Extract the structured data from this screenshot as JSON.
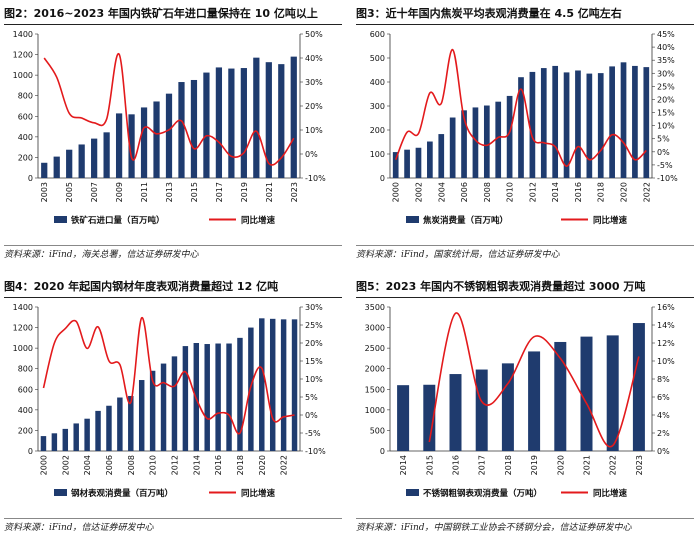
{
  "colors": {
    "bar": "#1f3b6e",
    "line": "#e31a1c",
    "axis": "#333333"
  },
  "chart_data": [
    {
      "type": "bar",
      "title": "图2：2016~2023 年国内铁矿石年进口量保持在 10 亿吨以上",
      "source": "资料来源：iFind，海关总署，信达证券研发中心",
      "categories": [
        "2003",
        "2004",
        "2005",
        "2006",
        "2007",
        "2008",
        "2009",
        "2010",
        "2011",
        "2012",
        "2013",
        "2014",
        "2015",
        "2016",
        "2017",
        "2018",
        "2019",
        "2020",
        "2021",
        "2022",
        "2023"
      ],
      "x_tick_labels": [
        "2003",
        "2005",
        "2007",
        "2009",
        "2011",
        "2013",
        "2015",
        "2017",
        "2019",
        "2021",
        "2023"
      ],
      "series": [
        {
          "name": "铁矿石进口量（百万吨）",
          "type": "bar",
          "axis": "left",
          "values": [
            148,
            208,
            275,
            326,
            383,
            444,
            628,
            619,
            686,
            744,
            820,
            933,
            953,
            1025,
            1075,
            1064,
            1069,
            1170,
            1126,
            1107,
            1180
          ]
        },
        {
          "name": "同比增速",
          "type": "line",
          "axis": "right",
          "values": [
            40.0,
            32.0,
            17.0,
            15.0,
            13.0,
            14.5,
            41.6,
            -1.5,
            10.9,
            8.4,
            10.1,
            13.8,
            2.2,
            7.6,
            4.9,
            -1.0,
            0.5,
            9.5,
            -3.9,
            -1.6,
            6.6
          ]
        }
      ],
      "y_left": {
        "min": 0,
        "max": 1400,
        "step": 200,
        "ticks": [
          "0",
          "200",
          "400",
          "600",
          "800",
          "1000",
          "1200",
          "1400"
        ]
      },
      "y_right": {
        "min": -10,
        "max": 50,
        "step": 10,
        "ticks": [
          "-10%",
          "0%",
          "10%",
          "20%",
          "30%",
          "40%",
          "50%"
        ]
      }
    },
    {
      "type": "bar",
      "title": "图3：近十年国内焦炭平均表观消费量在 4.5 亿吨左右",
      "source": "资料来源：iFind，国家统计局，信达证券研发中心",
      "categories": [
        "2000",
        "2001",
        "2002",
        "2003",
        "2004",
        "2005",
        "2006",
        "2007",
        "2008",
        "2009",
        "2010",
        "2011",
        "2012",
        "2013",
        "2014",
        "2015",
        "2016",
        "2017",
        "2018",
        "2019",
        "2020",
        "2021",
        "2022"
      ],
      "x_tick_labels": [
        "2000",
        "2002",
        "2004",
        "2006",
        "2008",
        "2010",
        "2012",
        "2014",
        "2016",
        "2018",
        "2020",
        "2022"
      ],
      "series": [
        {
          "name": "焦炭消费量（百万吨）",
          "type": "bar",
          "axis": "left",
          "values": [
            108,
            118,
            126,
            152,
            183,
            252,
            282,
            294,
            302,
            318,
            342,
            420,
            442,
            458,
            467,
            440,
            448,
            435,
            437,
            465,
            482,
            467,
            462
          ]
        },
        {
          "name": "同比增速",
          "type": "line",
          "axis": "right",
          "values": [
            -3.0,
            7.5,
            7.0,
            22.5,
            18.5,
            39.0,
            13.0,
            4.5,
            2.5,
            5.5,
            7.5,
            24.0,
            5.5,
            3.5,
            2.0,
            -5.5,
            2.0,
            -3.0,
            0.5,
            6.5,
            3.5,
            -3.0,
            0.5
          ]
        }
      ],
      "y_left": {
        "min": 0,
        "max": 600,
        "step": 100,
        "ticks": [
          "0",
          "100",
          "200",
          "300",
          "400",
          "500",
          "600"
        ]
      },
      "y_right": {
        "min": -10,
        "max": 45,
        "step": 5,
        "ticks": [
          "-10%",
          "-5%",
          "0%",
          "5%",
          "10%",
          "15%",
          "20%",
          "25%",
          "30%",
          "35%",
          "40%",
          "45%"
        ]
      }
    },
    {
      "type": "bar",
      "title": "图4：2020 年起国内钢材年度表观消费量超过 12 亿吨",
      "source": "资料来源：iFind，信达证券研发中心",
      "categories": [
        "2000",
        "2001",
        "2002",
        "2003",
        "2004",
        "2005",
        "2006",
        "2007",
        "2008",
        "2009",
        "2010",
        "2011",
        "2012",
        "2013",
        "2014",
        "2015",
        "2016",
        "2017",
        "2018",
        "2019",
        "2020",
        "2021",
        "2022",
        "2023"
      ],
      "x_tick_labels": [
        "2000",
        "2002",
        "2004",
        "2006",
        "2008",
        "2010",
        "2012",
        "2014",
        "2016",
        "2018",
        "2020",
        "2022"
      ],
      "series": [
        {
          "name": "钢材表观消费量（百万吨）",
          "type": "bar",
          "axis": "left",
          "values": [
            145,
            172,
            215,
            268,
            314,
            390,
            440,
            520,
            535,
            690,
            780,
            850,
            920,
            1020,
            1050,
            1040,
            1045,
            1045,
            1100,
            1200,
            1290,
            1285,
            1280,
            1280
          ]
        },
        {
          "name": "同比增速",
          "type": "line",
          "axis": "right",
          "values": [
            7.5,
            20.0,
            24.0,
            26.0,
            18.5,
            24.5,
            15.0,
            14.0,
            3.5,
            27.0,
            9.5,
            9.0,
            8.0,
            12.0,
            4.5,
            -1.0,
            0.5,
            0.0,
            -5.0,
            8.0,
            13.0,
            -1.0,
            -0.5,
            0.0
          ]
        }
      ],
      "y_left": {
        "min": 0,
        "max": 1400,
        "step": 200,
        "ticks": [
          "0",
          "200",
          "400",
          "600",
          "800",
          "1000",
          "1200",
          "1400"
        ]
      },
      "y_right": {
        "min": -10,
        "max": 30,
        "step": 5,
        "ticks": [
          "-10%",
          "-5%",
          "0%",
          "5%",
          "10%",
          "15%",
          "20%",
          "25%",
          "30%"
        ]
      }
    },
    {
      "type": "bar",
      "title": "图5：2023 年国内不锈钢粗钢表观消费量超过 3000 万吨",
      "source": "资料来源：iFind，中国钢铁工业协会不锈钢分会，信达证券研发中心",
      "categories": [
        "2014",
        "2015",
        "2016",
        "2017",
        "2018",
        "2019",
        "2020",
        "2021",
        "2022",
        "2023"
      ],
      "x_tick_labels": [
        "2014",
        "2015",
        "2016",
        "2017",
        "2018",
        "2019",
        "2020",
        "2021",
        "2022",
        "2023"
      ],
      "series": [
        {
          "name": "不锈钢粗钢表观消费量（万吨）",
          "type": "bar",
          "axis": "left",
          "values": [
            1600,
            1610,
            1870,
            1980,
            2130,
            2420,
            2650,
            2780,
            2810,
            3110
          ]
        },
        {
          "name": "同比增速",
          "type": "line",
          "axis": "right",
          "values": [
            null,
            1.0,
            15.3,
            5.5,
            7.5,
            12.7,
            10.3,
            5.3,
            0.6,
            10.5
          ]
        }
      ],
      "y_left": {
        "min": 0,
        "max": 3500,
        "step": 500,
        "ticks": [
          "0",
          "500",
          "1000",
          "1500",
          "2000",
          "2500",
          "3000",
          "3500"
        ]
      },
      "y_right": {
        "min": 0,
        "max": 16,
        "step": 2,
        "ticks": [
          "0%",
          "2%",
          "4%",
          "6%",
          "8%",
          "10%",
          "12%",
          "14%",
          "16%"
        ]
      }
    }
  ]
}
